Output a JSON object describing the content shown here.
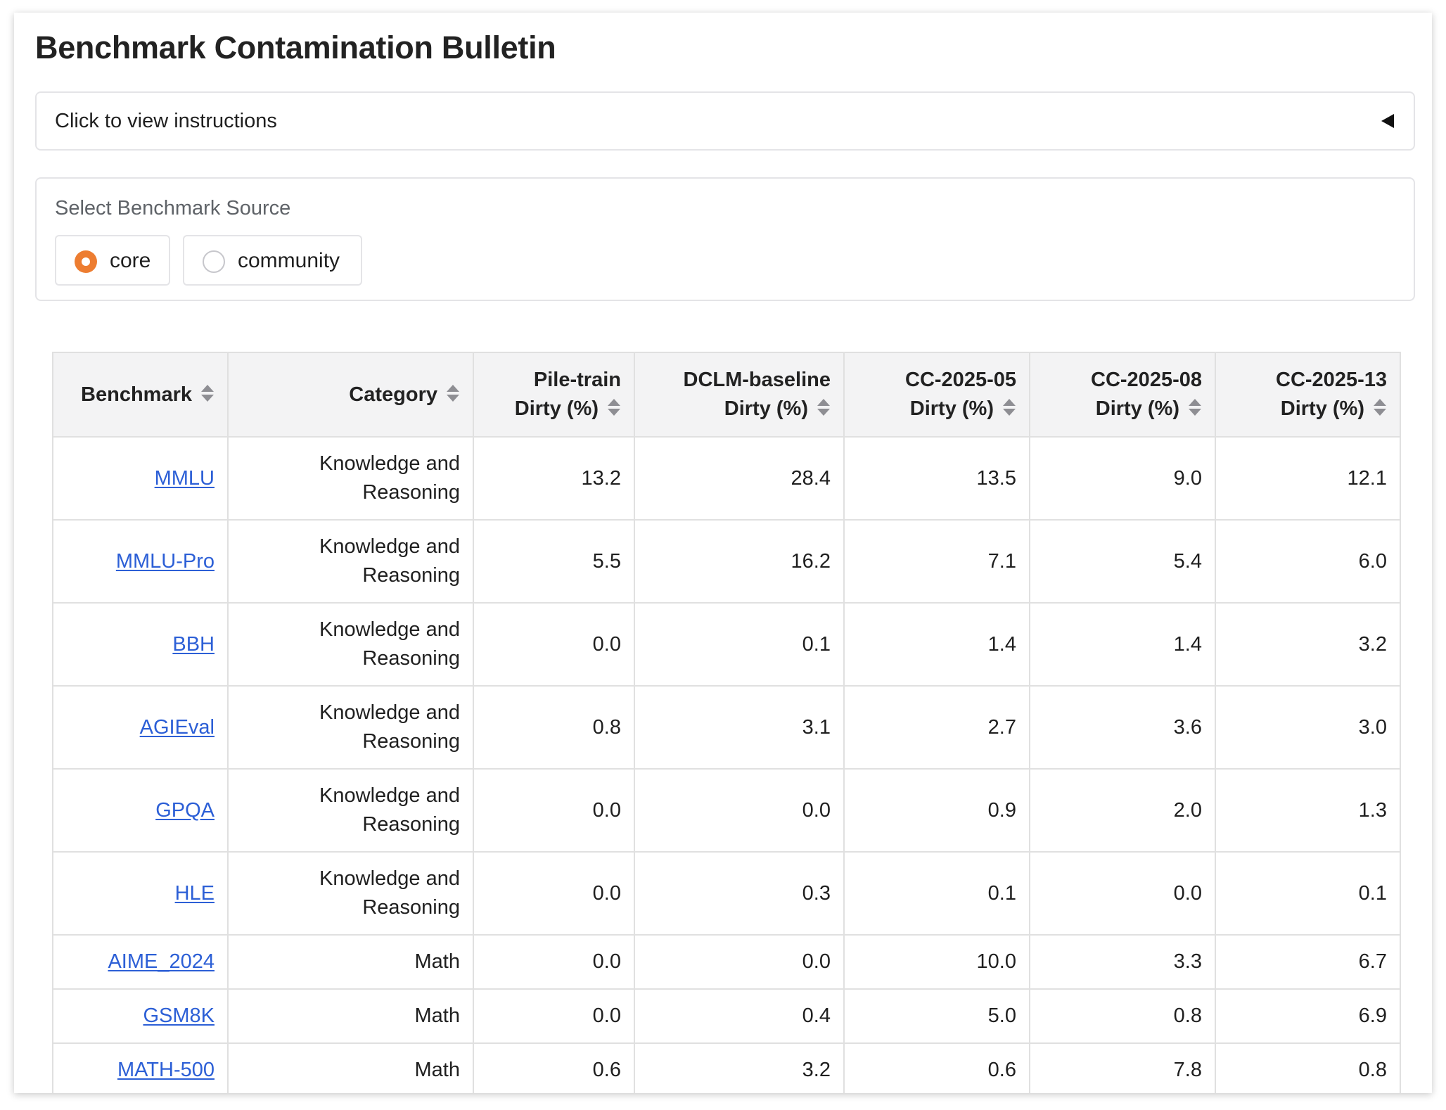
{
  "page": {
    "title": "Benchmark Contamination Bulletin"
  },
  "instructions": {
    "label": "Click to view instructions"
  },
  "source": {
    "legend": "Select Benchmark Source",
    "options": [
      {
        "label": "core",
        "selected": true
      },
      {
        "label": "community",
        "selected": false
      }
    ]
  },
  "table": {
    "headers": [
      {
        "line1": "Benchmark",
        "line2": ""
      },
      {
        "line1": "Category",
        "line2": ""
      },
      {
        "line1": "Pile-train",
        "line2": "Dirty (%)"
      },
      {
        "line1": "DCLM-baseline",
        "line2": "Dirty (%)"
      },
      {
        "line1": "CC-2025-05",
        "line2": "Dirty (%)"
      },
      {
        "line1": "CC-2025-08",
        "line2": "Dirty (%)"
      },
      {
        "line1": "CC-2025-13",
        "line2": "Dirty (%)"
      }
    ],
    "rows": [
      {
        "benchmark": "MMLU",
        "category_l1": "Knowledge and",
        "category_l2": "Reasoning",
        "pile": "13.2",
        "dclm": "28.4",
        "cc05": "13.5",
        "cc08": "9.0",
        "cc13": "12.1"
      },
      {
        "benchmark": "MMLU-Pro",
        "category_l1": "Knowledge and",
        "category_l2": "Reasoning",
        "pile": "5.5",
        "dclm": "16.2",
        "cc05": "7.1",
        "cc08": "5.4",
        "cc13": "6.0"
      },
      {
        "benchmark": "BBH",
        "category_l1": "Knowledge and",
        "category_l2": "Reasoning",
        "pile": "0.0",
        "dclm": "0.1",
        "cc05": "1.4",
        "cc08": "1.4",
        "cc13": "3.2"
      },
      {
        "benchmark": "AGIEval",
        "category_l1": "Knowledge and",
        "category_l2": "Reasoning",
        "pile": "0.8",
        "dclm": "3.1",
        "cc05": "2.7",
        "cc08": "3.6",
        "cc13": "3.0"
      },
      {
        "benchmark": "GPQA",
        "category_l1": "Knowledge and",
        "category_l2": "Reasoning",
        "pile": "0.0",
        "dclm": "0.0",
        "cc05": "0.9",
        "cc08": "2.0",
        "cc13": "1.3"
      },
      {
        "benchmark": "HLE",
        "category_l1": "Knowledge and",
        "category_l2": "Reasoning",
        "pile": "0.0",
        "dclm": "0.3",
        "cc05": "0.1",
        "cc08": "0.0",
        "cc13": "0.1"
      },
      {
        "benchmark": "AIME_2024",
        "category_l1": "Math",
        "category_l2": "",
        "pile": "0.0",
        "dclm": "0.0",
        "cc05": "10.0",
        "cc08": "3.3",
        "cc13": "6.7"
      },
      {
        "benchmark": "GSM8K",
        "category_l1": "Math",
        "category_l2": "",
        "pile": "0.0",
        "dclm": "0.4",
        "cc05": "5.0",
        "cc08": "0.8",
        "cc13": "6.9"
      },
      {
        "benchmark": "MATH-500",
        "category_l1": "Math",
        "category_l2": "",
        "pile": "0.6",
        "dclm": "3.2",
        "cc05": "0.6",
        "cc08": "7.8",
        "cc13": "0.8"
      }
    ]
  },
  "colors": {
    "accent": "#ed7d31",
    "link": "#2c5fd6",
    "header_bg": "#f3f3f4",
    "border": "#e0e0e0"
  },
  "icons": {
    "instructions_toggle": "caret-left-icon",
    "sort": "sort-icon"
  }
}
